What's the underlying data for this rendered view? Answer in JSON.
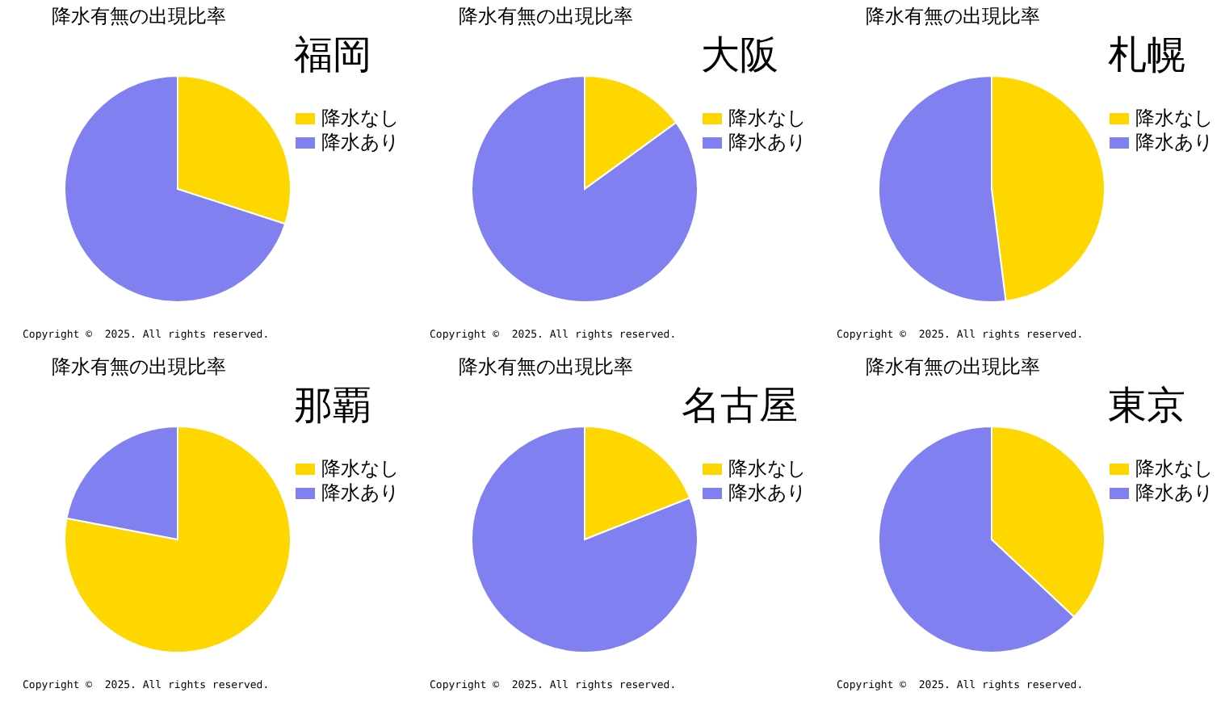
{
  "chart_data": [
    {
      "type": "pie",
      "title": "降水有無の出現比率",
      "subtitle": "福岡",
      "categories": [
        "降水なし",
        "降水あり"
      ],
      "values": [
        30,
        70
      ],
      "colors": [
        "#ffd700",
        "#8080f0"
      ],
      "legend": "right",
      "annotations": [
        "Copyright ©  2025. All rights reserved."
      ]
    },
    {
      "type": "pie",
      "title": "降水有無の出現比率",
      "subtitle": "大阪",
      "categories": [
        "降水なし",
        "降水あり"
      ],
      "values": [
        15,
        85
      ],
      "colors": [
        "#ffd700",
        "#8080f0"
      ],
      "legend": "right",
      "annotations": [
        "Copyright ©  2025. All rights reserved."
      ]
    },
    {
      "type": "pie",
      "title": "降水有無の出現比率",
      "subtitle": "札幌",
      "categories": [
        "降水なし",
        "降水あり"
      ],
      "values": [
        48,
        52
      ],
      "colors": [
        "#ffd700",
        "#8080f0"
      ],
      "legend": "right",
      "annotations": [
        "Copyright ©  2025. All rights reserved."
      ]
    },
    {
      "type": "pie",
      "title": "降水有無の出現比率",
      "subtitle": "那覇",
      "categories": [
        "降水なし",
        "降水あり"
      ],
      "values": [
        78,
        22
      ],
      "colors": [
        "#ffd700",
        "#8080f0"
      ],
      "legend": "right",
      "annotations": [
        "Copyright ©  2025. All rights reserved."
      ]
    },
    {
      "type": "pie",
      "title": "降水有無の出現比率",
      "subtitle": "名古屋",
      "categories": [
        "降水なし",
        "降水あり"
      ],
      "values": [
        19,
        81
      ],
      "colors": [
        "#ffd700",
        "#8080f0"
      ],
      "legend": "right",
      "annotations": [
        "Copyright ©  2025. All rights reserved."
      ]
    },
    {
      "type": "pie",
      "title": "降水有無の出現比率",
      "subtitle": "東京",
      "categories": [
        "降水なし",
        "降水あり"
      ],
      "values": [
        37,
        63
      ],
      "colors": [
        "#ffd700",
        "#8080f0"
      ],
      "legend": "right",
      "annotations": [
        "Copyright ©  2025. All rights reserved."
      ]
    }
  ]
}
